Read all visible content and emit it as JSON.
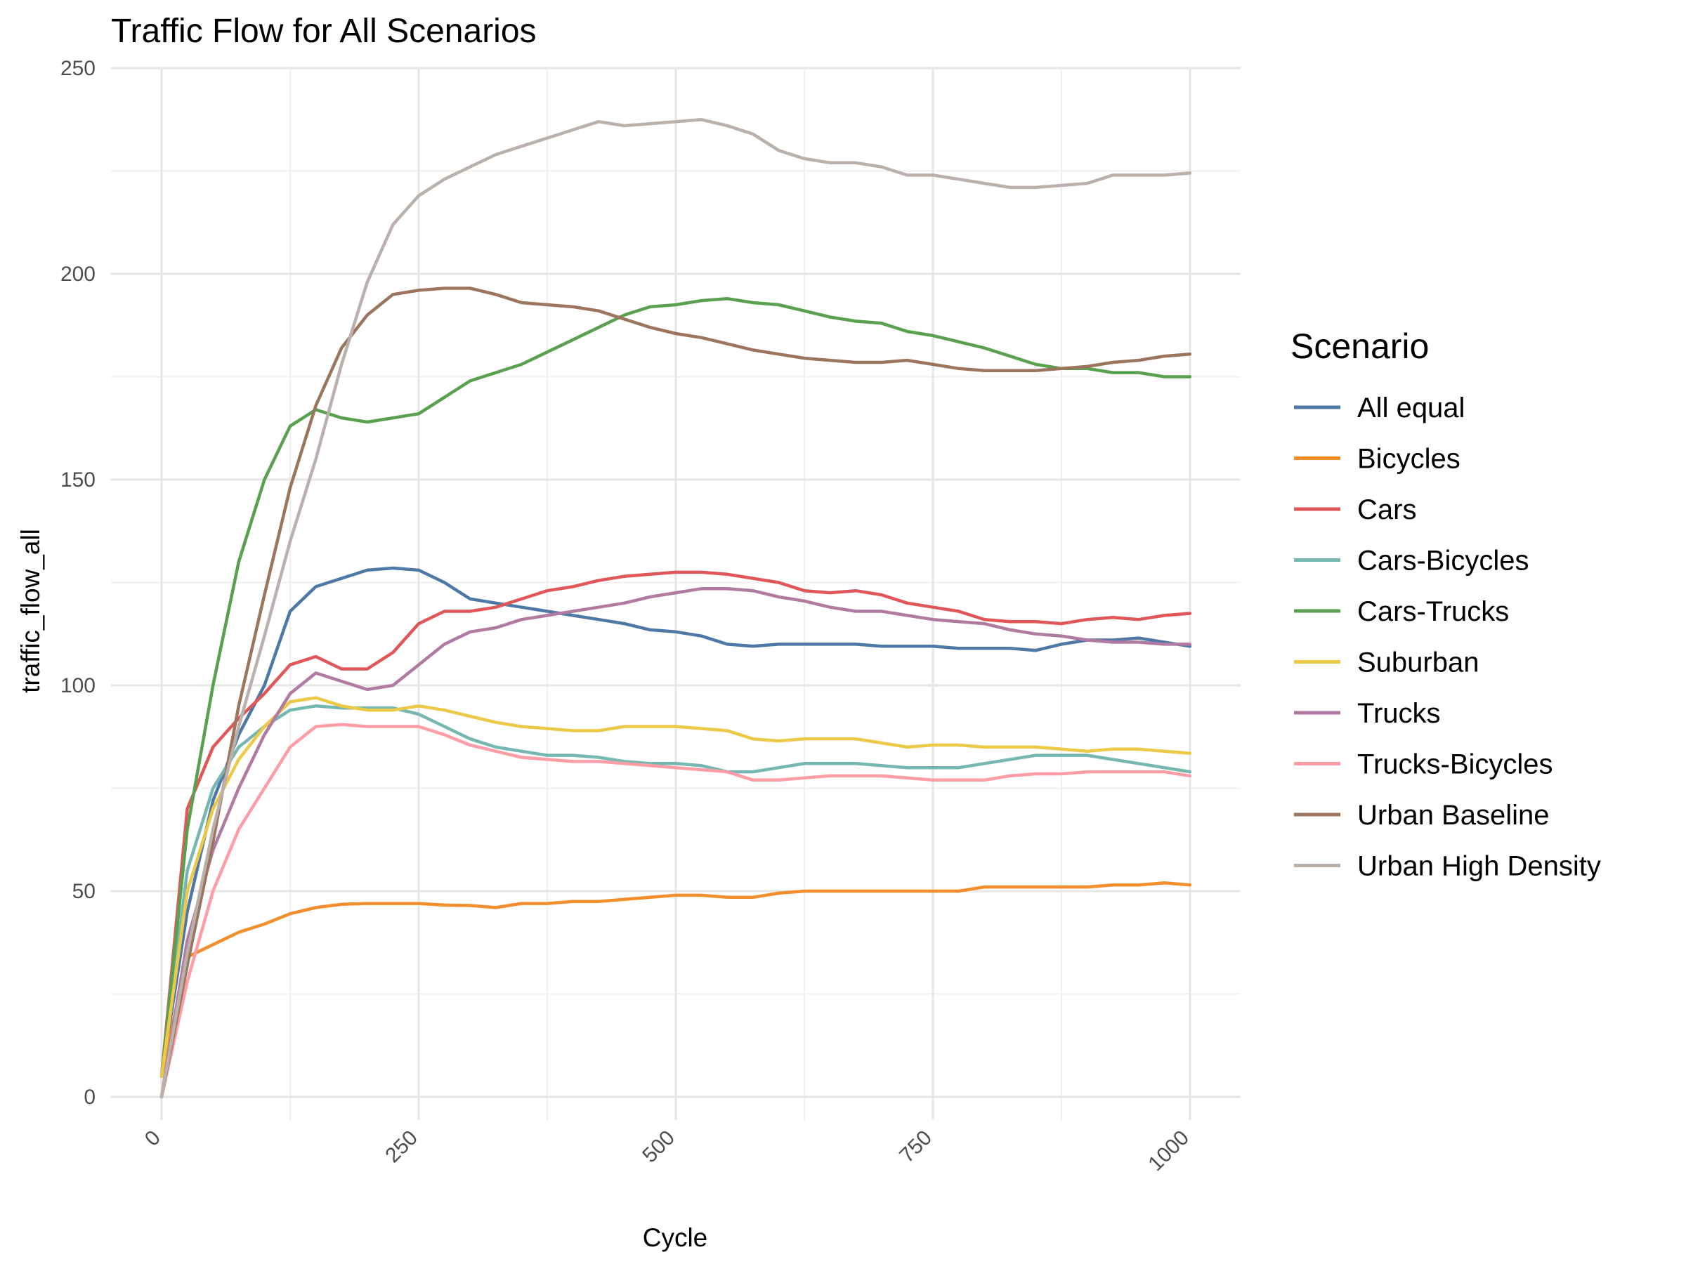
{
  "chart_data": {
    "type": "line",
    "title": "Traffic Flow for All Scenarios",
    "xlabel": "Cycle",
    "ylabel": "traffic_flow_all",
    "xlim": [
      0,
      1000
    ],
    "ylim": [
      0,
      250
    ],
    "x_ticks": [
      0,
      250,
      500,
      750,
      1000
    ],
    "y_ticks": [
      0,
      50,
      100,
      150,
      200,
      250
    ],
    "grid": true,
    "legend": {
      "title": "Scenario",
      "position": "right"
    },
    "x": [
      0,
      25,
      50,
      75,
      100,
      125,
      150,
      175,
      200,
      225,
      250,
      275,
      300,
      325,
      350,
      375,
      400,
      425,
      450,
      475,
      500,
      525,
      550,
      575,
      600,
      625,
      650,
      675,
      700,
      725,
      750,
      775,
      800,
      825,
      850,
      875,
      900,
      925,
      950,
      975,
      1000
    ],
    "series": [
      {
        "name": "All equal",
        "color": "#4E79A7",
        "values": [
          5,
          45,
          72,
          88,
          100,
          118,
          124,
          126,
          128,
          128.5,
          128,
          125,
          121,
          120,
          119,
          118,
          117,
          116,
          115,
          113.5,
          113,
          112,
          110,
          109.5,
          110,
          110,
          110,
          110,
          109.5,
          109.5,
          109.5,
          109,
          109,
          109,
          108.5,
          110,
          111,
          111,
          111.5,
          110.5,
          109.5
        ]
      },
      {
        "name": "Bicycles",
        "color": "#F28E2B",
        "values": [
          5,
          34,
          37,
          40,
          42,
          44.5,
          46,
          46.8,
          47,
          47,
          47,
          46.6,
          46.5,
          46,
          47,
          47,
          47.5,
          47.5,
          48,
          48.5,
          49,
          49,
          48.5,
          48.5,
          49.5,
          50,
          50,
          50,
          50,
          50,
          50,
          50,
          51,
          51,
          51,
          51,
          51,
          51.5,
          51.5,
          52,
          51.5
        ]
      },
      {
        "name": "Cars",
        "color": "#E15759",
        "values": [
          5,
          70,
          85,
          92,
          98,
          105,
          107,
          104,
          104,
          108,
          115,
          118,
          118,
          119,
          121,
          123,
          124,
          125.5,
          126.5,
          127,
          127.5,
          127.5,
          127,
          126,
          125,
          123,
          122.5,
          123,
          122,
          120,
          119,
          118,
          116,
          115.5,
          115.5,
          115,
          116,
          116.5,
          116,
          117,
          117.5
        ]
      },
      {
        "name": "Cars-Bicycles",
        "color": "#76B7B2",
        "values": [
          5,
          55,
          75,
          85,
          90,
          94,
          95,
          94.5,
          94.5,
          94.5,
          93,
          90,
          87,
          85,
          84,
          83,
          83,
          82.5,
          81.5,
          81,
          81,
          80.5,
          79,
          79,
          80,
          81,
          81,
          81,
          80.5,
          80,
          80,
          80,
          81,
          82,
          83,
          83,
          83,
          82,
          81,
          80,
          79
        ]
      },
      {
        "name": "Cars-Trucks",
        "color": "#59A14F",
        "values": [
          5,
          65,
          100,
          130,
          150,
          163,
          167,
          165,
          164,
          165,
          166,
          170,
          174,
          176,
          178,
          181,
          184,
          187,
          190,
          192,
          192.5,
          193.5,
          194,
          193,
          192.5,
          191,
          189.5,
          188.5,
          188,
          186,
          185,
          183.5,
          182,
          180,
          178,
          177,
          177,
          176,
          176,
          175,
          175
        ]
      },
      {
        "name": "Suburban",
        "color": "#EDC948",
        "values": [
          5,
          50,
          70,
          82,
          90,
          96,
          97,
          95,
          94,
          94,
          95,
          94,
          92.5,
          91,
          90,
          89.5,
          89,
          89,
          90,
          90,
          90,
          89.5,
          89,
          87,
          86.5,
          87,
          87,
          87,
          86,
          85,
          85.5,
          85.5,
          85,
          85,
          85,
          84.5,
          84,
          84.5,
          84.5,
          84,
          83.5
        ]
      },
      {
        "name": "Trucks",
        "color": "#B07AA1",
        "values": [
          0,
          38,
          60,
          75,
          88,
          98,
          103,
          101,
          99,
          100,
          105,
          110,
          113,
          114,
          116,
          117,
          118,
          119,
          120,
          121.5,
          122.5,
          123.5,
          123.5,
          123,
          121.5,
          120.5,
          119,
          118,
          118,
          117,
          116,
          115.5,
          115,
          113.5,
          112.5,
          112,
          111,
          110.5,
          110.5,
          110,
          110
        ]
      },
      {
        "name": "Trucks-Bicycles",
        "color": "#FF9DA7",
        "values": [
          0,
          28,
          50,
          65,
          75,
          85,
          90,
          90.5,
          90,
          90,
          90,
          88,
          85.5,
          84,
          82.5,
          82,
          81.5,
          81.5,
          81,
          80.5,
          80,
          79.5,
          79,
          77,
          77,
          77.5,
          78,
          78,
          78,
          77.5,
          77,
          77,
          77,
          78,
          78.5,
          78.5,
          79,
          79,
          79,
          79,
          78
        ]
      },
      {
        "name": "Urban Baseline",
        "color": "#9C755F",
        "values": [
          0,
          32,
          62,
          95,
          122,
          148,
          168,
          182,
          190,
          195,
          196,
          196.5,
          196.5,
          195,
          193,
          192.5,
          192,
          191,
          189,
          187,
          185.5,
          184.5,
          183,
          181.5,
          180.5,
          179.5,
          179,
          178.5,
          178.5,
          179,
          178,
          177,
          176.5,
          176.5,
          176.5,
          177,
          177.5,
          178.5,
          179,
          180,
          180.5
        ]
      },
      {
        "name": "Urban High Density",
        "color": "#BAB0AC",
        "values": [
          0,
          35,
          65,
          90,
          112,
          135,
          155,
          178,
          198,
          212,
          219,
          223,
          226,
          229,
          231,
          233,
          235,
          237,
          236,
          236.5,
          237,
          237.5,
          236,
          234,
          230,
          228,
          227,
          227,
          226,
          224,
          224,
          223,
          222,
          221,
          221,
          221.5,
          222,
          224,
          224,
          224,
          224.5
        ]
      }
    ]
  }
}
